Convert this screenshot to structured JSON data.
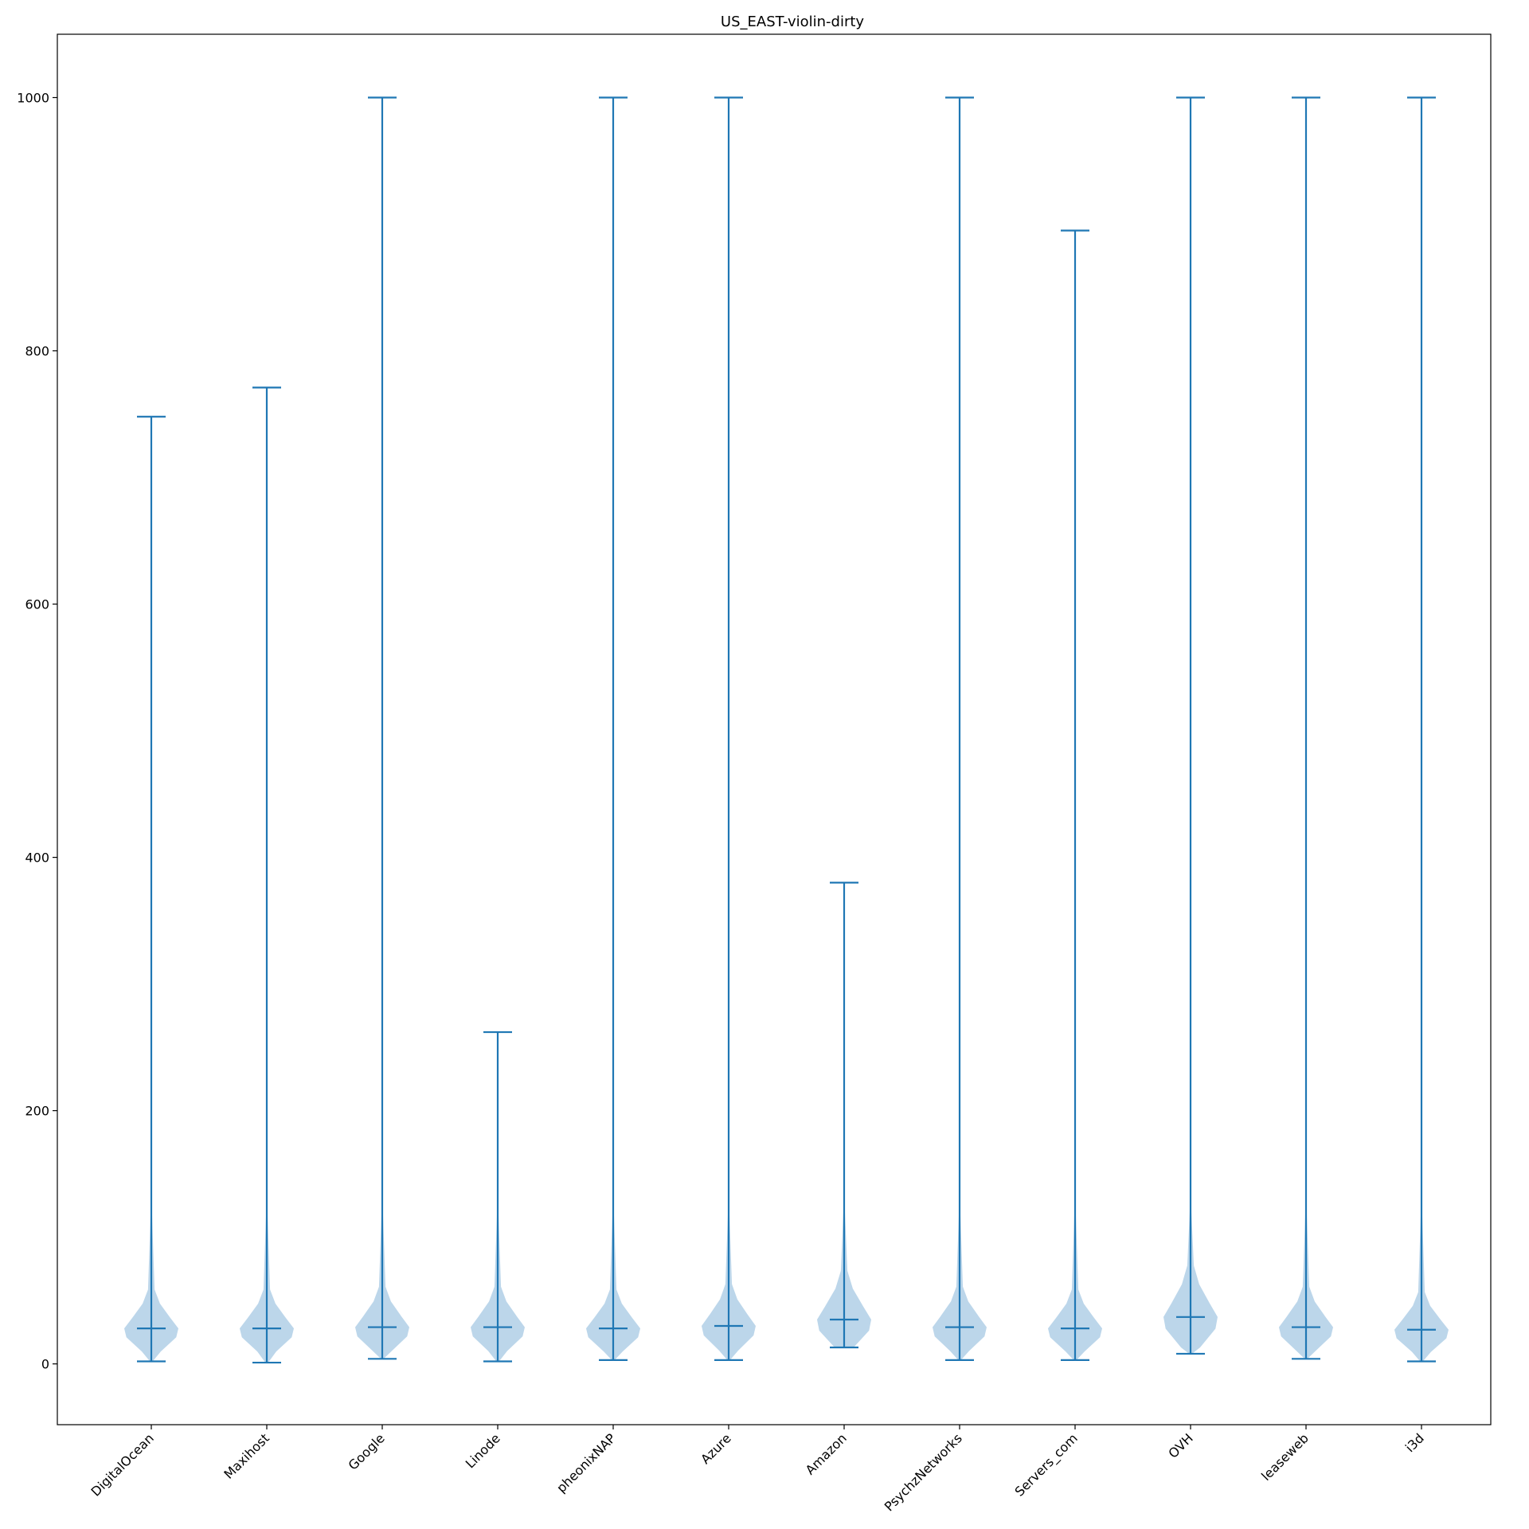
{
  "chart_data": {
    "type": "violin",
    "title": "US_EAST-violin-dirty",
    "xlabel": "",
    "ylabel": "",
    "ylim": [
      -48,
      1050
    ],
    "yticks": [
      0,
      200,
      400,
      600,
      800,
      1000
    ],
    "grid": false,
    "color": "#1f77b4",
    "body_color": "#a6c8e3",
    "categories": [
      "DigitalOcean",
      "Maxihost",
      "Google",
      "Linode",
      "pheonixNAP",
      "Azure",
      "Amazon",
      "PsychzNetworks",
      "Servers_com",
      "OVH",
      "leaseweb",
      "i3d"
    ],
    "series": [
      {
        "category": "DigitalOcean",
        "min": 2,
        "max": 748,
        "median": 28
      },
      {
        "category": "Maxihost",
        "min": 1,
        "max": 771,
        "median": 28
      },
      {
        "category": "Google",
        "min": 4,
        "max": 1000,
        "median": 29
      },
      {
        "category": "Linode",
        "min": 2,
        "max": 262,
        "median": 29
      },
      {
        "category": "pheonixNAP",
        "min": 3,
        "max": 1000,
        "median": 28
      },
      {
        "category": "Azure",
        "min": 3,
        "max": 1000,
        "median": 30
      },
      {
        "category": "Amazon",
        "min": 13,
        "max": 380,
        "median": 35
      },
      {
        "category": "PsychzNetworks",
        "min": 3,
        "max": 1000,
        "median": 29
      },
      {
        "category": "Servers_com",
        "min": 3,
        "max": 895,
        "median": 28
      },
      {
        "category": "OVH",
        "min": 8,
        "max": 1000,
        "median": 37
      },
      {
        "category": "leaseweb",
        "min": 4,
        "max": 1000,
        "median": 29
      },
      {
        "category": "i3d",
        "min": 2,
        "max": 1000,
        "median": 27
      }
    ]
  }
}
